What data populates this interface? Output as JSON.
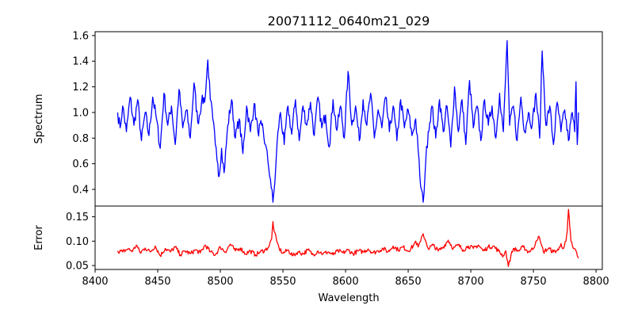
{
  "chart_data": {
    "type": "line",
    "title": "20071112_0640m21_029",
    "xlabel": "Wavelength",
    "xlim": [
      8400,
      8805
    ],
    "xticks": [
      8400,
      8450,
      8500,
      8550,
      8600,
      8650,
      8700,
      8750,
      8800
    ],
    "grid": false,
    "panels": [
      {
        "name": "spectrum",
        "ylabel": "Spectrum",
        "ylim": [
          0.27,
          1.63
        ],
        "yticks": [
          0.4,
          0.6,
          0.8,
          1.0,
          1.2,
          1.4,
          1.6
        ],
        "ytick_labels": [
          "0.4",
          "0.6",
          "0.8",
          "1.0",
          "1.2",
          "1.4",
          "1.6"
        ],
        "color": "#0000ff",
        "x_start": 8418,
        "x_end": 8786,
        "key_points": [
          [
            8418,
            1.0
          ],
          [
            8420,
            0.88
          ],
          [
            8422,
            1.05
          ],
          [
            8425,
            0.85
          ],
          [
            8428,
            1.12
          ],
          [
            8431,
            0.9
          ],
          [
            8434,
            1.1
          ],
          [
            8437,
            0.78
          ],
          [
            8440,
            1.0
          ],
          [
            8443,
            0.82
          ],
          [
            8446,
            1.12
          ],
          [
            8449,
            0.95
          ],
          [
            8452,
            0.72
          ],
          [
            8455,
            1.15
          ],
          [
            8458,
            0.9
          ],
          [
            8461,
            1.05
          ],
          [
            8464,
            0.75
          ],
          [
            8467,
            1.18
          ],
          [
            8470,
            0.88
          ],
          [
            8473,
            1.02
          ],
          [
            8476,
            0.8
          ],
          [
            8479,
            1.23
          ],
          [
            8482,
            0.92
          ],
          [
            8485,
            1.08
          ],
          [
            8488,
            1.12
          ],
          [
            8490,
            1.41
          ],
          [
            8492,
            1.1
          ],
          [
            8494,
            0.95
          ],
          [
            8496,
            0.75
          ],
          [
            8498,
            0.6
          ],
          [
            8499,
            0.5
          ],
          [
            8501,
            0.72
          ],
          [
            8503,
            0.53
          ],
          [
            8506,
            0.9
          ],
          [
            8509,
            1.1
          ],
          [
            8512,
            0.8
          ],
          [
            8515,
            0.95
          ],
          [
            8518,
            0.68
          ],
          [
            8521,
            1.05
          ],
          [
            8524,
            0.85
          ],
          [
            8527,
            1.07
          ],
          [
            8530,
            0.85
          ],
          [
            8533,
            0.9
          ],
          [
            8536,
            0.75
          ],
          [
            8538,
            0.62
          ],
          [
            8540,
            0.48
          ],
          [
            8542,
            0.3
          ],
          [
            8543,
            0.4
          ],
          [
            8544,
            0.53
          ],
          [
            8546,
            0.85
          ],
          [
            8548,
            1.0
          ],
          [
            8551,
            0.75
          ],
          [
            8554,
            1.05
          ],
          [
            8557,
            0.83
          ],
          [
            8560,
            1.1
          ],
          [
            8563,
            0.78
          ],
          [
            8566,
            1.05
          ],
          [
            8569,
            0.9
          ],
          [
            8572,
            1.08
          ],
          [
            8575,
            0.82
          ],
          [
            8578,
            1.12
          ],
          [
            8581,
            0.88
          ],
          [
            8584,
            0.98
          ],
          [
            8587,
            0.73
          ],
          [
            8590,
            1.1
          ],
          [
            8593,
            0.86
          ],
          [
            8596,
            1.05
          ],
          [
            8599,
            0.8
          ],
          [
            8602,
            1.32
          ],
          [
            8605,
            0.9
          ],
          [
            8608,
            1.05
          ],
          [
            8611,
            0.78
          ],
          [
            8614,
            1.1
          ],
          [
            8617,
            0.9
          ],
          [
            8620,
            1.15
          ],
          [
            8623,
            0.8
          ],
          [
            8626,
            1.02
          ],
          [
            8629,
            0.88
          ],
          [
            8632,
            1.12
          ],
          [
            8635,
            0.85
          ],
          [
            8638,
            1.05
          ],
          [
            8641,
            0.78
          ],
          [
            8644,
            1.1
          ],
          [
            8647,
            0.88
          ],
          [
            8650,
            1.02
          ],
          [
            8653,
            0.82
          ],
          [
            8656,
            0.95
          ],
          [
            8658,
            0.7
          ],
          [
            8660,
            0.42
          ],
          [
            8662,
            0.3
          ],
          [
            8664,
            0.62
          ],
          [
            8666,
            0.85
          ],
          [
            8669,
            1.05
          ],
          [
            8672,
            0.8
          ],
          [
            8675,
            1.1
          ],
          [
            8678,
            0.85
          ],
          [
            8681,
            1.05
          ],
          [
            8684,
            0.73
          ],
          [
            8687,
            1.2
          ],
          [
            8690,
            0.85
          ],
          [
            8693,
            1.1
          ],
          [
            8696,
            0.75
          ],
          [
            8699,
            1.25
          ],
          [
            8702,
            0.88
          ],
          [
            8705,
            1.05
          ],
          [
            8708,
            0.78
          ],
          [
            8711,
            1.1
          ],
          [
            8714,
            0.9
          ],
          [
            8717,
            1.05
          ],
          [
            8720,
            0.8
          ],
          [
            8723,
            1.15
          ],
          [
            8726,
            0.85
          ],
          [
            8729,
            1.56
          ],
          [
            8731,
            0.9
          ],
          [
            8734,
            1.05
          ],
          [
            8737,
            0.78
          ],
          [
            8740,
            1.12
          ],
          [
            8743,
            0.85
          ],
          [
            8746,
            1.0
          ],
          [
            8749,
            0.9
          ],
          [
            8752,
            1.15
          ],
          [
            8755,
            0.8
          ],
          [
            8757,
            1.48
          ],
          [
            8760,
            0.9
          ],
          [
            8763,
            1.05
          ],
          [
            8766,
            0.75
          ],
          [
            8769,
            1.08
          ],
          [
            8772,
            0.85
          ],
          [
            8775,
            1.02
          ],
          [
            8778,
            0.78
          ],
          [
            8781,
            1.0
          ],
          [
            8783,
            0.85
          ],
          [
            8784,
            1.24
          ],
          [
            8785,
            0.75
          ],
          [
            8786,
            1.0
          ]
        ]
      },
      {
        "name": "error",
        "ylabel": "Error",
        "ylim": [
          0.042,
          0.172
        ],
        "yticks": [
          0.05,
          0.1,
          0.15
        ],
        "ytick_labels": [
          "0.05",
          "0.10",
          "0.15"
        ],
        "color": "#ff0000",
        "x_start": 8418,
        "x_end": 8786,
        "key_points": [
          [
            8418,
            0.08
          ],
          [
            8422,
            0.078
          ],
          [
            8426,
            0.084
          ],
          [
            8430,
            0.08
          ],
          [
            8433,
            0.092
          ],
          [
            8436,
            0.076
          ],
          [
            8440,
            0.086
          ],
          [
            8444,
            0.078
          ],
          [
            8448,
            0.09
          ],
          [
            8452,
            0.07
          ],
          [
            8456,
            0.085
          ],
          [
            8460,
            0.078
          ],
          [
            8464,
            0.088
          ],
          [
            8468,
            0.072
          ],
          [
            8472,
            0.08
          ],
          [
            8476,
            0.074
          ],
          [
            8480,
            0.082
          ],
          [
            8484,
            0.076
          ],
          [
            8488,
            0.092
          ],
          [
            8492,
            0.078
          ],
          [
            8496,
            0.072
          ],
          [
            8500,
            0.088
          ],
          [
            8504,
            0.078
          ],
          [
            8508,
            0.094
          ],
          [
            8512,
            0.08
          ],
          [
            8516,
            0.086
          ],
          [
            8520,
            0.074
          ],
          [
            8524,
            0.08
          ],
          [
            8528,
            0.072
          ],
          [
            8532,
            0.078
          ],
          [
            8536,
            0.082
          ],
          [
            8539,
            0.09
          ],
          [
            8541,
            0.105
          ],
          [
            8542,
            0.14
          ],
          [
            8543,
            0.12
          ],
          [
            8545,
            0.1
          ],
          [
            8547,
            0.085
          ],
          [
            8550,
            0.075
          ],
          [
            8554,
            0.082
          ],
          [
            8558,
            0.07
          ],
          [
            8562,
            0.078
          ],
          [
            8566,
            0.074
          ],
          [
            8570,
            0.082
          ],
          [
            8574,
            0.072
          ],
          [
            8578,
            0.08
          ],
          [
            8582,
            0.074
          ],
          [
            8586,
            0.078
          ],
          [
            8590,
            0.072
          ],
          [
            8594,
            0.08
          ],
          [
            8598,
            0.076
          ],
          [
            8602,
            0.082
          ],
          [
            8606,
            0.074
          ],
          [
            8610,
            0.08
          ],
          [
            8614,
            0.078
          ],
          [
            8618,
            0.084
          ],
          [
            8622,
            0.076
          ],
          [
            8626,
            0.08
          ],
          [
            8630,
            0.085
          ],
          [
            8634,
            0.078
          ],
          [
            8638,
            0.09
          ],
          [
            8642,
            0.082
          ],
          [
            8646,
            0.088
          ],
          [
            8650,
            0.08
          ],
          [
            8654,
            0.09
          ],
          [
            8656,
            0.1
          ],
          [
            8658,
            0.088
          ],
          [
            8660,
            0.1
          ],
          [
            8662,
            0.115
          ],
          [
            8664,
            0.1
          ],
          [
            8666,
            0.085
          ],
          [
            8670,
            0.092
          ],
          [
            8674,
            0.08
          ],
          [
            8678,
            0.088
          ],
          [
            8682,
            0.102
          ],
          [
            8686,
            0.085
          ],
          [
            8690,
            0.092
          ],
          [
            8694,
            0.082
          ],
          [
            8698,
            0.09
          ],
          [
            8702,
            0.085
          ],
          [
            8706,
            0.092
          ],
          [
            8710,
            0.08
          ],
          [
            8714,
            0.088
          ],
          [
            8718,
            0.09
          ],
          [
            8722,
            0.08
          ],
          [
            8726,
            0.07
          ],
          [
            8728,
            0.08
          ],
          [
            8730,
            0.048
          ],
          [
            8732,
            0.07
          ],
          [
            8734,
            0.085
          ],
          [
            8738,
            0.08
          ],
          [
            8742,
            0.088
          ],
          [
            8746,
            0.078
          ],
          [
            8750,
            0.085
          ],
          [
            8752,
            0.1
          ],
          [
            8754,
            0.11
          ],
          [
            8756,
            0.095
          ],
          [
            8758,
            0.078
          ],
          [
            8762,
            0.085
          ],
          [
            8766,
            0.078
          ],
          [
            8770,
            0.082
          ],
          [
            8772,
            0.095
          ],
          [
            8774,
            0.085
          ],
          [
            8776,
            0.1
          ],
          [
            8777,
            0.12
          ],
          [
            8778,
            0.165
          ],
          [
            8779,
            0.13
          ],
          [
            8780,
            0.1
          ],
          [
            8782,
            0.085
          ],
          [
            8784,
            0.08
          ],
          [
            8785,
            0.07
          ],
          [
            8786,
            0.065
          ]
        ]
      }
    ]
  }
}
